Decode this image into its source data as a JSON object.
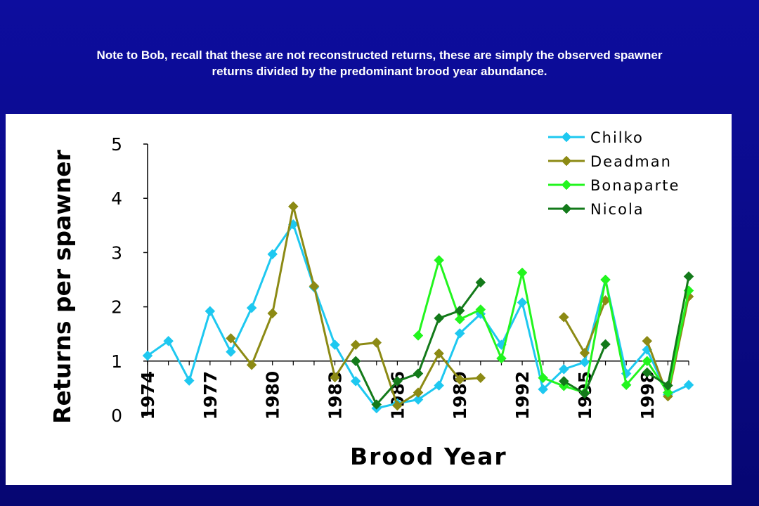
{
  "note": {
    "line1": "Note to Bob,  recall that these are not reconstructed returns, these are simply the observed spawner",
    "line2": "returns divided by the predominant brood year abundance."
  },
  "chart_data": {
    "type": "line",
    "title": "",
    "xlabel": "Brood Year",
    "ylabel": "Returns per spawner",
    "xlim": [
      1974,
      2000
    ],
    "ylim": [
      0,
      5
    ],
    "x_ticks": [
      "1974",
      "1977",
      "1980",
      "1983",
      "1986",
      "1989",
      "1992",
      "1995",
      "1998"
    ],
    "y_ticks": [
      "0",
      "1",
      "2",
      "3",
      "4",
      "5"
    ],
    "grid": false,
    "legend_position": "top-right",
    "series": [
      {
        "name": "Chilko",
        "color": "#1ec8f0",
        "points": [
          [
            1974,
            1.1
          ],
          [
            1975,
            1.37
          ],
          [
            1976,
            0.64
          ],
          [
            1977,
            1.92
          ],
          [
            1978,
            1.17
          ],
          [
            1979,
            1.98
          ],
          [
            1980,
            2.97
          ],
          [
            1981,
            3.52
          ],
          [
            1982,
            2.36
          ],
          [
            1983,
            1.3
          ],
          [
            1984,
            0.63
          ],
          [
            1985,
            0.13
          ],
          [
            1986,
            0.22
          ],
          [
            1987,
            0.29
          ],
          [
            1988,
            0.55
          ],
          [
            1989,
            1.51
          ],
          [
            1990,
            1.87
          ],
          [
            1991,
            1.3
          ],
          [
            1992,
            2.08
          ],
          [
            1993,
            0.48
          ],
          [
            1994,
            0.85
          ],
          [
            1995,
            0.98
          ],
          [
            1996,
            2.5
          ],
          [
            1997,
            0.77
          ],
          [
            1998,
            1.21
          ],
          [
            1999,
            0.38
          ],
          [
            2000,
            0.56
          ]
        ]
      },
      {
        "name": "Deadman",
        "color": "#8c8a14",
        "points": [
          [
            1978,
            1.42
          ],
          [
            1979,
            0.93
          ],
          [
            1980,
            1.88
          ],
          [
            1981,
            3.85
          ],
          [
            1982,
            2.38
          ],
          [
            1983,
            0.7
          ],
          [
            1984,
            1.3
          ],
          [
            1985,
            1.34
          ],
          [
            1986,
            0.18
          ],
          [
            1987,
            0.42
          ],
          [
            1988,
            1.14
          ],
          [
            1989,
            0.66
          ],
          [
            1990,
            0.69
          ],
          [
            null,
            null
          ],
          [
            1994,
            1.81
          ],
          [
            1995,
            1.15
          ],
          [
            1996,
            2.12
          ],
          [
            null,
            null
          ],
          [
            1998,
            1.37
          ],
          [
            1999,
            0.35
          ],
          [
            2000,
            2.19
          ]
        ]
      },
      {
        "name": "Bonaparte",
        "color": "#22f51e",
        "points": [
          [
            1987,
            1.47
          ],
          [
            1988,
            2.86
          ],
          [
            1989,
            1.77
          ],
          [
            1990,
            1.95
          ],
          [
            1991,
            1.05
          ],
          [
            1992,
            2.63
          ],
          [
            1993,
            0.69
          ],
          [
            1994,
            0.54
          ],
          [
            1995,
            0.42
          ],
          [
            1996,
            2.5
          ],
          [
            1997,
            0.56
          ],
          [
            1998,
            1.0
          ],
          [
            1999,
            0.42
          ],
          [
            2000,
            2.3
          ]
        ]
      },
      {
        "name": "Nicola",
        "color": "#137a1a",
        "points": [
          [
            1984,
            1.0
          ],
          [
            1985,
            0.2
          ],
          [
            1986,
            0.63
          ],
          [
            1987,
            0.77
          ],
          [
            1988,
            1.79
          ],
          [
            1989,
            1.93
          ],
          [
            1990,
            2.45
          ],
          [
            null,
            null
          ],
          [
            1994,
            0.63
          ],
          [
            1995,
            0.4
          ],
          [
            1996,
            1.31
          ],
          [
            null,
            null
          ],
          [
            1998,
            0.79
          ],
          [
            1999,
            0.55
          ],
          [
            2000,
            2.56
          ]
        ]
      }
    ]
  }
}
